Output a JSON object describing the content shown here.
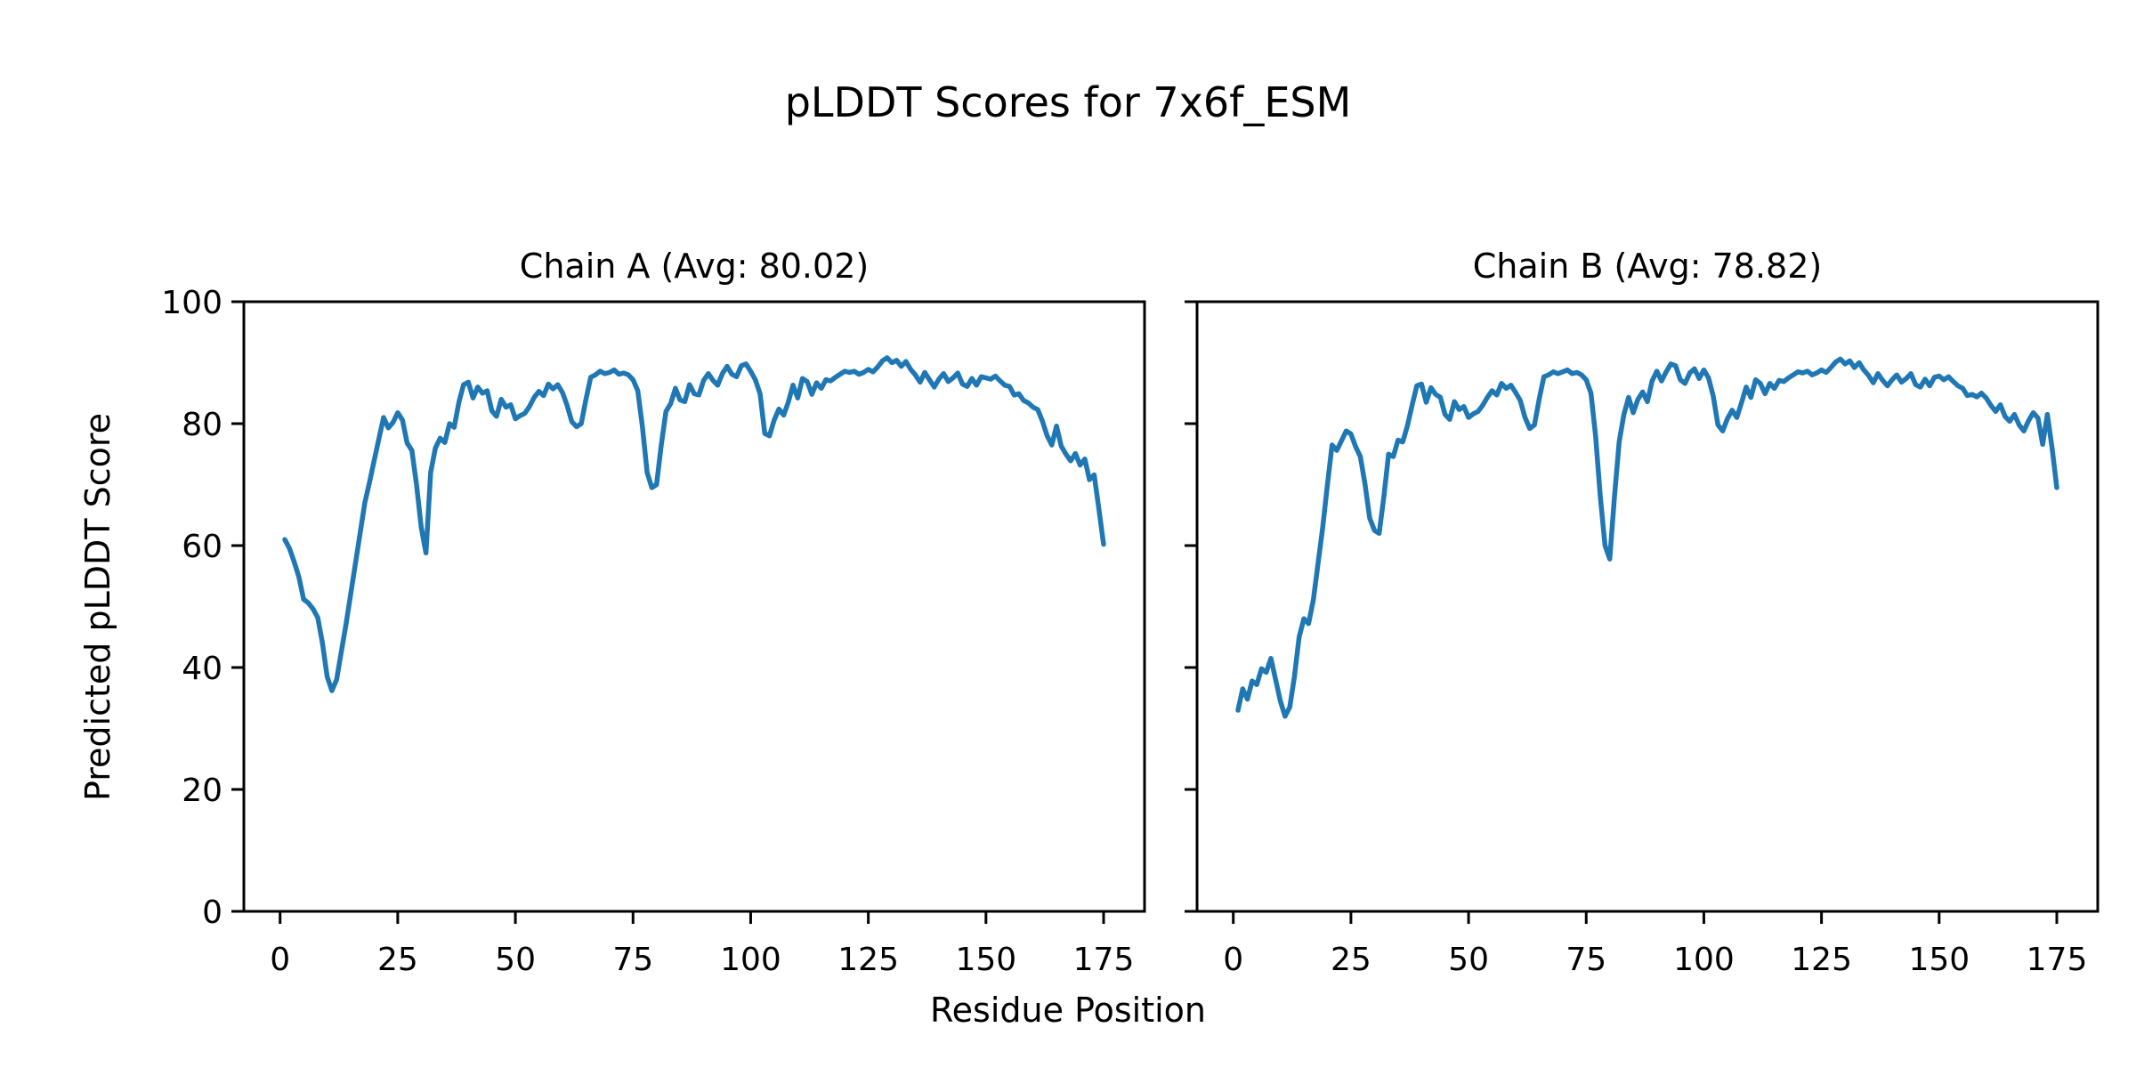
{
  "figure": {
    "title": "pLDDT Scores for 7x6f_ESM",
    "xlabel": "Residue Position",
    "ylabel": "Predicted pLDDT Score",
    "line_color": "#1f77b4",
    "background_color": "#ffffff",
    "text_color": "#000000"
  },
  "chart_data": [
    {
      "type": "line",
      "title": "Chain A (Avg: 80.02)",
      "chain": "A",
      "avg": 80.02,
      "legend_position": "none",
      "grid": false,
      "xlim": [
        -7.7,
        183.7
      ],
      "ylim": [
        0,
        100
      ],
      "xticks": [
        0,
        25,
        50,
        75,
        100,
        125,
        150,
        175
      ],
      "yticks": [
        0,
        20,
        40,
        60,
        80,
        100
      ],
      "show_ytick_labels": true,
      "x_start": 1,
      "x_step": 1,
      "values": [
        61.0,
        59.5,
        57.3,
        54.8,
        51.2,
        50.6,
        49.6,
        48.2,
        44.0,
        38.5,
        36.2,
        38.0,
        42.5,
        47.0,
        52.0,
        57.0,
        62.0,
        67.0,
        70.4,
        74.0,
        77.5,
        81.0,
        79.3,
        80.2,
        81.8,
        80.6,
        76.8,
        75.6,
        70.0,
        63.0,
        58.8,
        72.0,
        76.0,
        77.6,
        76.9,
        80.0,
        79.4,
        83.5,
        86.4,
        86.8,
        84.2,
        86.0,
        85.0,
        85.4,
        82.1,
        81.2,
        84.0,
        82.7,
        83.1,
        80.8,
        81.3,
        81.7,
        82.8,
        84.3,
        85.3,
        84.6,
        86.5,
        85.7,
        86.4,
        85.1,
        83.0,
        80.3,
        79.5,
        80.0,
        84.0,
        87.6,
        88.0,
        88.6,
        88.2,
        88.4,
        88.8,
        88.1,
        88.3,
        88.0,
        87.2,
        85.4,
        79.5,
        72.0,
        69.5,
        70.0,
        76.5,
        82.0,
        83.3,
        85.8,
        83.9,
        83.6,
        86.4,
        84.9,
        84.7,
        87.1,
        88.2,
        87.1,
        86.3,
        88.2,
        89.4,
        88.1,
        87.7,
        89.5,
        89.8,
        88.6,
        87.2,
        84.9,
        78.4,
        78.0,
        80.6,
        82.4,
        81.4,
        83.5,
        86.3,
        84.2,
        87.4,
        86.9,
        84.8,
        86.7,
        85.8,
        87.2,
        87.0,
        87.6,
        88.1,
        88.6,
        88.4,
        88.6,
        88.1,
        88.4,
        88.9,
        88.5,
        89.3,
        90.3,
        90.8,
        90.0,
        90.4,
        89.4,
        90.2,
        88.9,
        88.0,
        86.8,
        88.4,
        87.2,
        86.0,
        87.3,
        88.2,
        86.9,
        87.5,
        88.3,
        86.5,
        86.1,
        87.4,
        86.3,
        87.7,
        87.5,
        87.3,
        87.8,
        87.0,
        86.3,
        86.1,
        84.7,
        84.9,
        83.8,
        83.4,
        82.7,
        82.3,
        80.4,
        78.0,
        76.5,
        79.6,
        76.3,
        75.0,
        73.9,
        75.1,
        73.2,
        74.2,
        70.8,
        71.6,
        66.0,
        60.2
      ]
    },
    {
      "type": "line",
      "title": "Chain B (Avg: 78.82)",
      "chain": "B",
      "avg": 78.82,
      "legend_position": "none",
      "grid": false,
      "xlim": [
        -7.7,
        183.7
      ],
      "ylim": [
        0,
        100
      ],
      "xticks": [
        0,
        25,
        50,
        75,
        100,
        125,
        150,
        175
      ],
      "yticks": [
        0,
        20,
        40,
        60,
        80,
        100
      ],
      "show_ytick_labels": false,
      "x_start": 1,
      "x_step": 1,
      "values": [
        33.0,
        36.5,
        34.8,
        37.8,
        37.2,
        39.8,
        39.2,
        41.5,
        38.0,
        34.5,
        32.0,
        33.5,
        38.5,
        45.0,
        48.0,
        47.2,
        51.0,
        57.0,
        63.0,
        70.0,
        76.5,
        75.6,
        77.2,
        78.8,
        78.3,
        76.2,
        74.6,
        70.0,
        64.5,
        62.5,
        62.0,
        68.0,
        75.0,
        74.6,
        77.3,
        77.0,
        79.6,
        83.0,
        86.2,
        86.5,
        83.5,
        85.9,
        84.8,
        84.3,
        81.5,
        80.7,
        83.6,
        82.3,
        82.8,
        81.0,
        81.6,
        82.0,
        83.0,
        84.3,
        85.4,
        84.7,
        86.6,
        85.8,
        86.3,
        85.1,
        83.8,
        81.0,
        79.2,
        79.8,
        84.0,
        87.7,
        88.0,
        88.5,
        88.2,
        88.5,
        88.8,
        88.2,
        88.4,
        88.0,
        87.2,
        85.0,
        78.0,
        68.0,
        60.0,
        57.8,
        68.0,
        77.0,
        81.5,
        84.3,
        81.8,
        84.0,
        85.2,
        83.6,
        87.0,
        88.6,
        87.0,
        88.5,
        89.8,
        89.5,
        87.2,
        86.6,
        88.3,
        89.0,
        87.4,
        88.8,
        87.5,
        84.5,
        79.8,
        78.8,
        80.8,
        82.2,
        81.0,
        83.4,
        86.0,
        84.3,
        87.2,
        86.6,
        84.9,
        86.6,
        85.8,
        87.1,
        86.9,
        87.5,
        88.0,
        88.5,
        88.3,
        88.6,
        88.0,
        88.3,
        88.8,
        88.4,
        89.2,
        90.1,
        90.6,
        89.8,
        90.3,
        89.2,
        90.0,
        88.8,
        87.9,
        86.7,
        88.2,
        87.1,
        86.2,
        87.2,
        88.0,
        86.8,
        87.4,
        88.2,
        86.4,
        86.0,
        87.3,
        86.2,
        87.6,
        87.8,
        87.2,
        87.7,
        86.9,
        86.2,
        85.8,
        84.6,
        84.8,
        84.4,
        85.0,
        84.2,
        83.0,
        82.0,
        83.1,
        81.2,
        80.4,
        81.5,
        79.8,
        78.8,
        80.5,
        81.8,
        80.9,
        76.6,
        81.5,
        76.0,
        69.5
      ]
    }
  ]
}
